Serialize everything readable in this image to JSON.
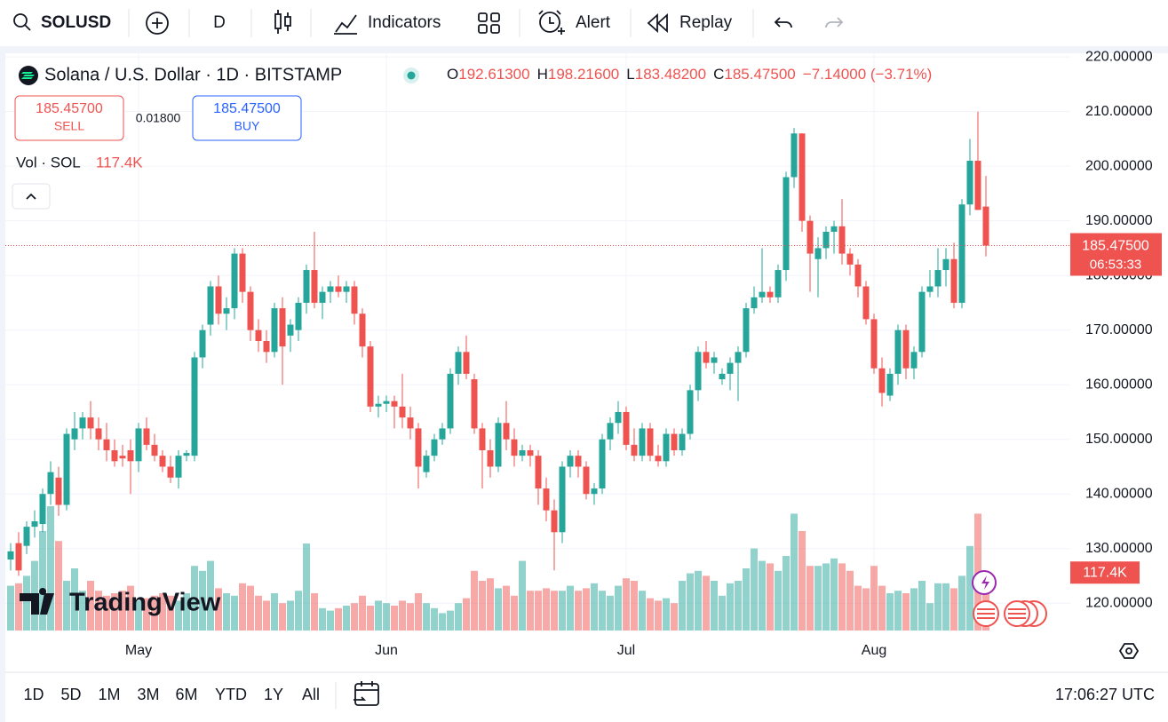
{
  "toolbar": {
    "symbol": "SOLUSD",
    "interval": "D",
    "indicators": "Indicators",
    "alert": "Alert",
    "replay": "Replay"
  },
  "chart_data": {
    "type": "candlestick",
    "title": "Solana / U.S. Dollar · 1D · BITSTAMP",
    "ohlc_legend": [
      {
        "key": "O",
        "value": "192.61300"
      },
      {
        "key": "H",
        "value": "198.21600"
      },
      {
        "key": "L",
        "value": "183.48200"
      },
      {
        "key": "C",
        "value": "185.47500"
      }
    ],
    "change": "−7.14000 (−3.71%)",
    "trade": {
      "sell": {
        "price": "185.45700",
        "label": "SELL"
      },
      "spread": "0.01800",
      "buy": {
        "price": "185.47500",
        "label": "BUY"
      }
    },
    "up_color": "#26a69a",
    "down_color": "#ef5350",
    "categories": [
      null,
      null,
      null,
      null,
      null,
      null,
      null,
      null,
      null,
      null,
      null,
      null,
      null,
      null,
      null,
      null,
      "May",
      null,
      null,
      null,
      null,
      null,
      null,
      null,
      null,
      null,
      null,
      null,
      null,
      null,
      null,
      null,
      null,
      null,
      null,
      null,
      null,
      null,
      null,
      null,
      null,
      null,
      null,
      null,
      null,
      null,
      null,
      "Jun",
      null,
      null,
      null,
      null,
      null,
      null,
      null,
      null,
      null,
      null,
      null,
      null,
      null,
      null,
      null,
      null,
      null,
      null,
      null,
      null,
      null,
      null,
      null,
      null,
      null,
      null,
      null,
      null,
      null,
      "Jul",
      null,
      null,
      null,
      null,
      null,
      null,
      null,
      null,
      null,
      null,
      null,
      null,
      null,
      null,
      null,
      null,
      null,
      null,
      null,
      null,
      null,
      null,
      null,
      null,
      null,
      null,
      null,
      null,
      null,
      null,
      "Aug",
      null,
      null,
      null,
      null,
      null,
      null,
      null,
      null,
      null,
      null,
      null,
      null,
      null,
      null
    ],
    "candles": [
      [
        128,
        131,
        126,
        129.5
      ],
      [
        131,
        133,
        125,
        126
      ],
      [
        130.5,
        135,
        129,
        134
      ],
      [
        134,
        137,
        132,
        135
      ],
      [
        134.5,
        141,
        133,
        140
      ],
      [
        140,
        146,
        138,
        144
      ],
      [
        143,
        145,
        136,
        138
      ],
      [
        138,
        152,
        137,
        151
      ],
      [
        150,
        155,
        148,
        152
      ],
      [
        152,
        155,
        150,
        154
      ],
      [
        154,
        157,
        150,
        152
      ],
      [
        152,
        154,
        148,
        150
      ],
      [
        150,
        153,
        146,
        148
      ],
      [
        148,
        150,
        145,
        146
      ],
      [
        147,
        149,
        145,
        146.5
      ],
      [
        148,
        150,
        140,
        146
      ],
      [
        146,
        153,
        144,
        152
      ],
      [
        152,
        154,
        148,
        149
      ],
      [
        149,
        151,
        146,
        147
      ],
      [
        147,
        148,
        144,
        145
      ],
      [
        145,
        147,
        142,
        143
      ],
      [
        143,
        148,
        141,
        147
      ],
      [
        147,
        148,
        146,
        147.5
      ],
      [
        147,
        166,
        146,
        165
      ],
      [
        165,
        171,
        163,
        170
      ],
      [
        171,
        179,
        169,
        178
      ],
      [
        178,
        180,
        171,
        173
      ],
      [
        173,
        176,
        170,
        174
      ],
      [
        174,
        185,
        172,
        184
      ],
      [
        184,
        185,
        175,
        177
      ],
      [
        177,
        178,
        168,
        170
      ],
      [
        170,
        172,
        166,
        168
      ],
      [
        168,
        170,
        164,
        166
      ],
      [
        166,
        175,
        165,
        174
      ],
      [
        174,
        176,
        160,
        167
      ],
      [
        169,
        172,
        166,
        171
      ],
      [
        170,
        176,
        168,
        175
      ],
      [
        175,
        182,
        173,
        181
      ],
      [
        181,
        188,
        174,
        175
      ],
      [
        175,
        178,
        172,
        177
      ],
      [
        177,
        179,
        175,
        178
      ],
      [
        178,
        180,
        176,
        177
      ],
      [
        177,
        179,
        175,
        178
      ],
      [
        178,
        179,
        171,
        173
      ],
      [
        173,
        174,
        165,
        167
      ],
      [
        167,
        168,
        155,
        156
      ],
      [
        156,
        158,
        154,
        156.5
      ],
      [
        156.5,
        158,
        155,
        157
      ],
      [
        157,
        158,
        152,
        156
      ],
      [
        156,
        162,
        152,
        154
      ],
      [
        154,
        156,
        150,
        152
      ],
      [
        152,
        153,
        141,
        145
      ],
      [
        144,
        148,
        143,
        147
      ],
      [
        147,
        151,
        146,
        150
      ],
      [
        150,
        153,
        149,
        152
      ],
      [
        152,
        163,
        151,
        162
      ],
      [
        162,
        167,
        160,
        166
      ],
      [
        166,
        169,
        161,
        162
      ],
      [
        161,
        162,
        151,
        152
      ],
      [
        152,
        153,
        141,
        148
      ],
      [
        148,
        150,
        143,
        145
      ],
      [
        145,
        154,
        144,
        153
      ],
      [
        153,
        157,
        148,
        150
      ],
      [
        150,
        152,
        145,
        147
      ],
      [
        147,
        149,
        146,
        148
      ],
      [
        148,
        149,
        145,
        147
      ],
      [
        147,
        148,
        138,
        141
      ],
      [
        141,
        143,
        135,
        137
      ],
      [
        137,
        139,
        126,
        133
      ],
      [
        133,
        146,
        131,
        145
      ],
      [
        145,
        148,
        143,
        147
      ],
      [
        147,
        148,
        143,
        145
      ],
      [
        145,
        146,
        139,
        140
      ],
      [
        140,
        142,
        138,
        141
      ],
      [
        141,
        151,
        140,
        150
      ],
      [
        150,
        154,
        148,
        153
      ],
      [
        153,
        157,
        151,
        155
      ],
      [
        155,
        156,
        148,
        149
      ],
      [
        149,
        152,
        146,
        147
      ],
      [
        147,
        153,
        146,
        152
      ],
      [
        152,
        153,
        146,
        147
      ],
      [
        147,
        149,
        145,
        146
      ],
      [
        146,
        152,
        145,
        151
      ],
      [
        151,
        152,
        147,
        148
      ],
      [
        148,
        152,
        147,
        151
      ],
      [
        151,
        160,
        150,
        159
      ],
      [
        159,
        167,
        157,
        166
      ],
      [
        166,
        168,
        163,
        164
      ],
      [
        164,
        166,
        162,
        165
      ],
      [
        161,
        163,
        160,
        162
      ],
      [
        162,
        165,
        159,
        164
      ],
      [
        164,
        167,
        157,
        166
      ],
      [
        166,
        175,
        165,
        174
      ],
      [
        174,
        178,
        173,
        176
      ],
      [
        176,
        185,
        175,
        177
      ],
      [
        177,
        178,
        175,
        176
      ],
      [
        176,
        182,
        175,
        181
      ],
      [
        181,
        199,
        179,
        198
      ],
      [
        198,
        207,
        196,
        206
      ],
      [
        206,
        206,
        188,
        190
      ],
      [
        190,
        191,
        177,
        184
      ],
      [
        183,
        187,
        176,
        185
      ],
      [
        185,
        189,
        183,
        188
      ],
      [
        188,
        190,
        184,
        189
      ],
      [
        189,
        194,
        182,
        184
      ],
      [
        184,
        185,
        180,
        182
      ],
      [
        182,
        183,
        176,
        178
      ],
      [
        178,
        179,
        171,
        172
      ],
      [
        172,
        173,
        162,
        163
      ],
      [
        163,
        165,
        156,
        158.5
      ],
      [
        158,
        163,
        157,
        162
      ],
      [
        162,
        171,
        160,
        170
      ],
      [
        170,
        171,
        161,
        163
      ],
      [
        163,
        167,
        161,
        166
      ],
      [
        166,
        178,
        165,
        177
      ],
      [
        177,
        181,
        176,
        178
      ],
      [
        178,
        185,
        176,
        181
      ],
      [
        181,
        185,
        178,
        183
      ],
      [
        183,
        186,
        174,
        175
      ],
      [
        175,
        194,
        174,
        193
      ],
      [
        193,
        205,
        191,
        201
      ],
      [
        201,
        210,
        192,
        192
      ],
      [
        192.613,
        198.216,
        183.482,
        185.475
      ]
    ],
    "volume": {
      "name": "Vol · SOL",
      "last_label": "117.4K",
      "values": [
        90,
        95,
        110,
        140,
        200,
        250,
        180,
        100,
        125,
        80,
        100,
        80,
        70,
        75,
        80,
        90,
        60,
        65,
        70,
        75,
        70,
        60,
        75,
        130,
        120,
        140,
        85,
        75,
        70,
        95,
        90,
        70,
        60,
        75,
        55,
        60,
        80,
        175,
        75,
        45,
        40,
        45,
        50,
        55,
        70,
        50,
        60,
        55,
        50,
        60,
        55,
        75,
        55,
        45,
        35,
        40,
        55,
        65,
        120,
        100,
        105,
        85,
        90,
        70,
        140,
        80,
        80,
        85,
        80,
        80,
        90,
        80,
        85,
        95,
        80,
        70,
        90,
        105,
        100,
        80,
        65,
        60,
        65,
        55,
        100,
        115,
        120,
        110,
        100,
        70,
        95,
        100,
        125,
        165,
        140,
        135,
        120,
        150,
        235,
        200,
        130,
        130,
        135,
        145,
        135,
        120,
        90,
        85,
        130,
        90,
        75,
        80,
        75,
        85,
        100,
        55,
        95,
        95,
        85,
        110,
        170,
        235,
        117.4
      ]
    },
    "ylim": [
      115,
      221
    ],
    "yticks": [
      {
        "value": 120,
        "label": "120.00000"
      },
      {
        "value": 130,
        "label": "130.00000"
      },
      {
        "value": 140,
        "label": "140.00000"
      },
      {
        "value": 150,
        "label": "150.00000"
      },
      {
        "value": 160,
        "label": "160.00000"
      },
      {
        "value": 170,
        "label": "170.00000"
      },
      {
        "value": 180,
        "label": "180.00000"
      },
      {
        "value": 190,
        "label": "190.00000"
      },
      {
        "value": 200,
        "label": "200.00000"
      },
      {
        "value": 210,
        "label": "210.00000"
      },
      {
        "value": 220,
        "label": "220.00000"
      }
    ],
    "last_price": {
      "value": 185.475,
      "label": "185.47500"
    },
    "countdown": "06:53:33",
    "grid": true
  },
  "logo": "TradingView",
  "footer": {
    "timeframes": [
      "1D",
      "5D",
      "1M",
      "3M",
      "6M",
      "YTD",
      "1Y",
      "All"
    ],
    "clock": "17:06:27 UTC"
  }
}
